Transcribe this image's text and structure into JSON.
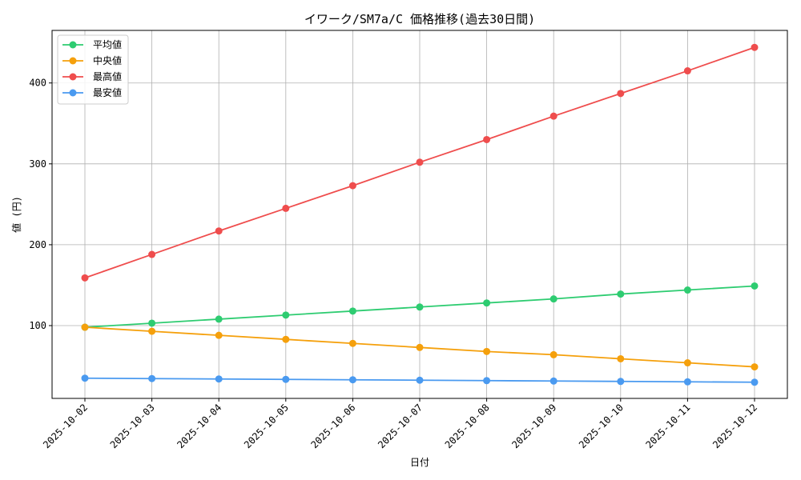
{
  "chart_data": {
    "type": "line",
    "title": "イワーク/SM7a/C 価格推移(過去30日間)",
    "xlabel": "日付",
    "ylabel": "値 (円)",
    "categories": [
      "2025-10-02",
      "2025-10-03",
      "2025-10-04",
      "2025-10-05",
      "2025-10-06",
      "2025-10-07",
      "2025-10-08",
      "2025-10-09",
      "2025-10-10",
      "2025-10-11",
      "2025-10-12"
    ],
    "ylim": [
      10,
      465
    ],
    "yticks": [
      100,
      200,
      300,
      400
    ],
    "grid": true,
    "legend_position": "top-left",
    "series": [
      {
        "name": "平均値",
        "color": "#2ecc71",
        "values": [
          98,
          103,
          108,
          113,
          118,
          123,
          128,
          133,
          139,
          144,
          149
        ]
      },
      {
        "name": "中央値",
        "color": "#f5a00c",
        "values": [
          98,
          93,
          88,
          83,
          78,
          73,
          68,
          64,
          59,
          54,
          49
        ]
      },
      {
        "name": "最高値",
        "color": "#ef4d4d",
        "values": [
          159,
          188,
          217,
          245,
          273,
          302,
          330,
          359,
          387,
          415,
          444
        ]
      },
      {
        "name": "最安値",
        "color": "#4a9af0",
        "values": [
          35,
          34.5,
          34,
          33.5,
          33,
          32.5,
          32,
          31.5,
          31,
          30.5,
          30
        ]
      }
    ]
  }
}
